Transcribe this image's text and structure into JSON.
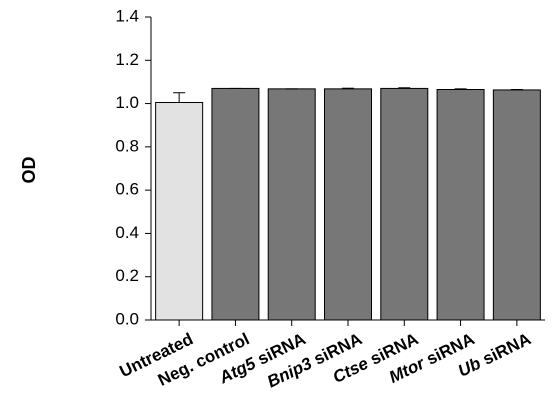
{
  "chart_data": {
    "type": "bar",
    "ylabel": "OD",
    "xlabel": "",
    "title": "",
    "ylim": [
      0.0,
      1.4
    ],
    "yticks": [
      "0.0",
      "0.2",
      "0.4",
      "0.6",
      "0.8",
      "1.0",
      "1.2",
      "1.4"
    ],
    "grid": false,
    "categories": [
      {
        "prefix": "",
        "italic": "",
        "suffix": "Untreated"
      },
      {
        "prefix": "",
        "italic": "",
        "suffix": "Neg. control"
      },
      {
        "prefix": "",
        "italic": "Atg5",
        "suffix": " siRNA"
      },
      {
        "prefix": "",
        "italic": "Bnip3",
        "suffix": " siRNA"
      },
      {
        "prefix": "",
        "italic": "Ctse",
        "suffix": " siRNA"
      },
      {
        "prefix": "",
        "italic": "Mtor",
        "suffix": " siRNA"
      },
      {
        "prefix": "",
        "italic": "Ub",
        "suffix": " siRNA"
      }
    ],
    "values": [
      1.005,
      1.07,
      1.068,
      1.068,
      1.07,
      1.065,
      1.063
    ],
    "errors": [
      0.045,
      0.0,
      0.0,
      0.003,
      0.003,
      0.003,
      0.002
    ],
    "colors": [
      "#e2e2e2",
      "#777777",
      "#777777",
      "#777777",
      "#777777",
      "#777777",
      "#777777"
    ]
  }
}
